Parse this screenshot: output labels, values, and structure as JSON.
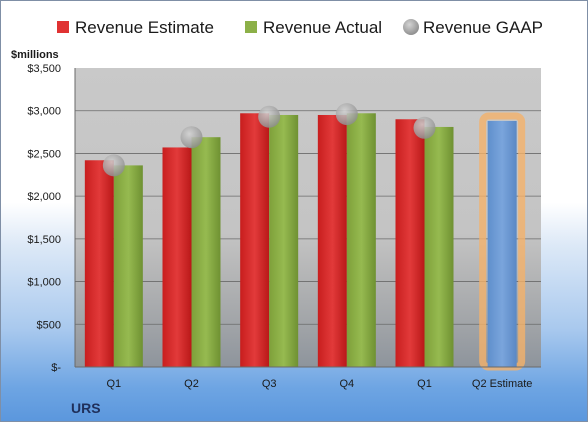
{
  "chart_data": {
    "type": "bar",
    "company": "URS",
    "ylabel": "$millions",
    "categories": [
      "Q1",
      "Q2",
      "Q3",
      "Q4",
      "Q1",
      "Q2 Estimate"
    ],
    "ylim": [
      0,
      3500
    ],
    "yticks": [
      0,
      500,
      1000,
      1500,
      2000,
      2500,
      3000,
      3500
    ],
    "ytick_labels": [
      "$-",
      "$500",
      "$1,000",
      "$1,500",
      "$2,000",
      "$2,500",
      "$3,000",
      "$3,500"
    ],
    "grid": true,
    "legend_position": "top",
    "series": [
      {
        "name": "Revenue Estimate",
        "type": "bar",
        "color": "#e03232",
        "values": [
          2420,
          2570,
          2970,
          2950,
          2900,
          null
        ]
      },
      {
        "name": "Revenue Actual",
        "type": "bar",
        "color": "#8cb048",
        "values": [
          2360,
          2690,
          2950,
          2970,
          2810,
          null
        ]
      },
      {
        "name": "Revenue GAAP",
        "type": "scatter",
        "color": "#a6a6a6",
        "values": [
          2360,
          2690,
          2930,
          2960,
          2800,
          null
        ]
      },
      {
        "name": "",
        "type": "bar",
        "color": "#6d9bd4",
        "highlight": "#f4b26a",
        "values": [
          null,
          null,
          null,
          null,
          null,
          2880
        ]
      }
    ]
  }
}
